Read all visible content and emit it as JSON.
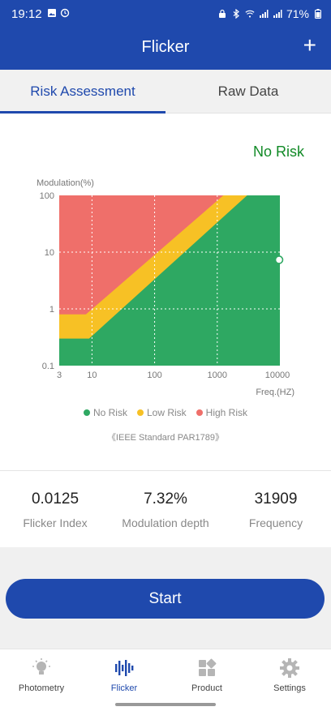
{
  "status_bar": {
    "time": "19:12",
    "battery": "71%"
  },
  "header": {
    "title": "Flicker",
    "add_label": "+"
  },
  "tabs": [
    {
      "label": "Risk Assessment",
      "active": true
    },
    {
      "label": "Raw Data",
      "active": false
    }
  ],
  "risk_result": "No Risk",
  "chart_data": {
    "type": "area",
    "ylabel": "Modulation(%)",
    "xlabel": "Freq.(HZ)",
    "x_scale": "log",
    "y_scale": "log",
    "xlim": [
      3,
      10000
    ],
    "ylim": [
      0.1,
      100
    ],
    "x_ticks": [
      "3",
      "10",
      "100",
      "1000",
      "10000"
    ],
    "y_ticks": [
      "100",
      "10",
      "1",
      "0.1"
    ],
    "regions": [
      {
        "name": "No Risk",
        "color": "#2ea862",
        "boundary": [
          [
            3,
            0.3
          ],
          [
            9,
            0.3
          ],
          [
            3000,
            100
          ]
        ]
      },
      {
        "name": "Low Risk",
        "color": "#f7c125",
        "boundary": [
          [
            3,
            0.8
          ],
          [
            8,
            0.8
          ],
          [
            1250,
            100
          ]
        ]
      },
      {
        "name": "High Risk",
        "color": "#ef6f6a"
      }
    ],
    "point": {
      "x": 10000,
      "y": 7.32
    },
    "grid": true,
    "legend": "bottom"
  },
  "legend": [
    {
      "label": "No Risk",
      "color": "#2ea862"
    },
    {
      "label": "Low Risk",
      "color": "#f7c125"
    },
    {
      "label": "High Risk",
      "color": "#ef6f6a"
    }
  ],
  "standard_note": "《IEEE Standard PAR1789》",
  "metrics": [
    {
      "value": "0.0125",
      "label": "Flicker Index"
    },
    {
      "value": "7.32%",
      "label": "Modulation depth"
    },
    {
      "value": "31909",
      "label": "Frequency"
    }
  ],
  "start_label": "Start",
  "nav": [
    {
      "label": "Photometry",
      "icon": "bulb-icon",
      "active": false
    },
    {
      "label": "Flicker",
      "icon": "waveform-icon",
      "active": true
    },
    {
      "label": "Product",
      "icon": "grid-icon",
      "active": false
    },
    {
      "label": "Settings",
      "icon": "gear-icon",
      "active": false
    }
  ]
}
